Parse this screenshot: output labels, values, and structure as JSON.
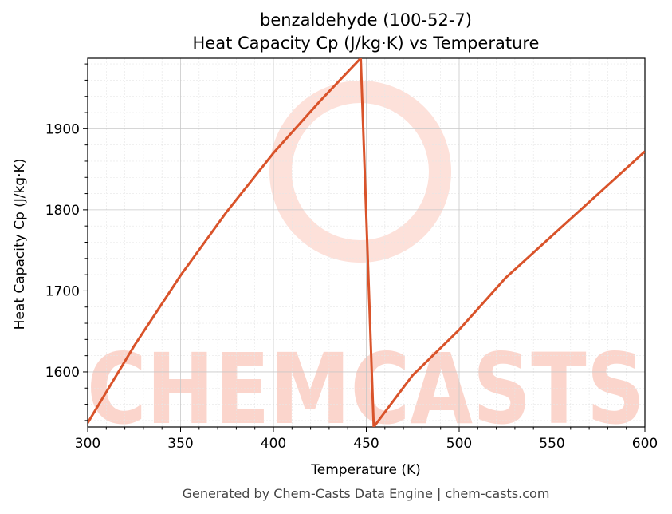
{
  "chart_data": {
    "type": "line",
    "title": "benzaldehyde (100-52-7)",
    "subtitle": "Heat Capacity Cp (J/kg·K) vs Temperature",
    "xlabel": "Temperature (K)",
    "ylabel": "Heat Capacity Cp (J/kg·K)",
    "xlim": [
      300,
      600
    ],
    "ylim": [
      1532,
      1987
    ],
    "x_ticks": [
      300,
      350,
      400,
      450,
      500,
      550,
      600
    ],
    "y_ticks": [
      1600,
      1700,
      1800,
      1900
    ],
    "grid": true,
    "line_color": "#d9532a",
    "series": [
      {
        "x": [
          300,
          325,
          350,
          375,
          400,
          425,
          447,
          454,
          475,
          500,
          525,
          550,
          575,
          600
        ],
        "y": [
          1537,
          1632,
          1719,
          1798,
          1870,
          1934,
          1987,
          1532,
          1596,
          1652,
          1716,
          1768,
          1820,
          1872
        ]
      }
    ]
  },
  "watermark": {
    "text": "CHEMCASTS",
    "color": "#fbd5cc"
  },
  "footer": "Generated by Chem-Casts Data Engine | chem-casts.com"
}
